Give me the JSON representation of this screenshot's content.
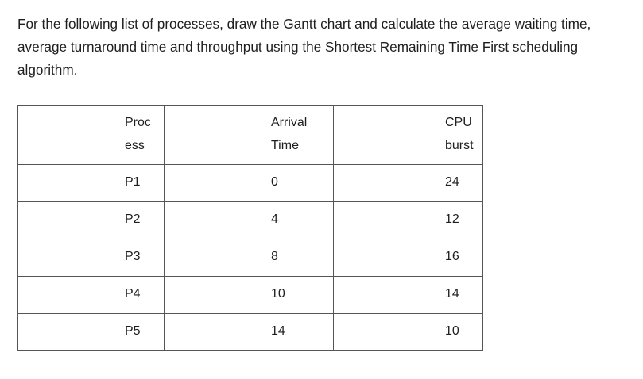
{
  "question": {
    "lines": [
      "For the following list of processes, draw the Gantt chart and calculate the average waiting time,",
      "average turnaround time and throughput using the Shortest Remaining Time First scheduling",
      "algorithm."
    ]
  },
  "table": {
    "headers": [
      [
        "Proc",
        "ess"
      ],
      [
        "Arrival",
        "Time"
      ],
      [
        "CPU",
        "burst"
      ]
    ],
    "rows": [
      [
        "P1",
        "0",
        "24"
      ],
      [
        "P2",
        "4",
        "12"
      ],
      [
        "P3",
        "8",
        "16"
      ],
      [
        "P4",
        "10",
        "14"
      ],
      [
        "P5",
        "14",
        "10"
      ]
    ]
  }
}
